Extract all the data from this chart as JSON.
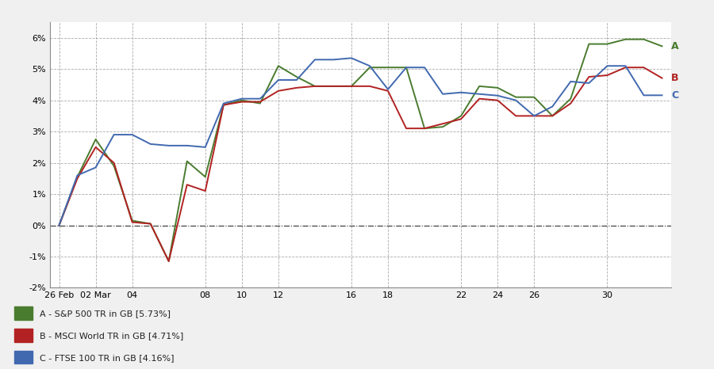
{
  "series": {
    "A": {
      "label": "A - S&P 500 TR in GB [5.73%]",
      "color": "#4a7c2f",
      "x": [
        0,
        1,
        2,
        3,
        4,
        5,
        6,
        7,
        8,
        9,
        10,
        11,
        12,
        13,
        14,
        15,
        16,
        17,
        18,
        19,
        20,
        21,
        22,
        23,
        24,
        25,
        26,
        27,
        28,
        29,
        30,
        31,
        32,
        33
      ],
      "y": [
        0.0,
        1.55,
        2.75,
        1.9,
        0.15,
        0.05,
        -1.15,
        2.05,
        1.55,
        3.85,
        4.0,
        3.9,
        5.1,
        4.75,
        4.45,
        4.45,
        4.45,
        5.05,
        5.05,
        5.05,
        3.1,
        3.15,
        3.5,
        4.45,
        4.4,
        4.1,
        4.1,
        3.5,
        4.05,
        5.8,
        5.8,
        5.95,
        5.95,
        5.73
      ]
    },
    "B": {
      "label": "B - MSCI World TR in GB [4.71%]",
      "color": "#b22222",
      "x": [
        0,
        1,
        2,
        3,
        4,
        5,
        6,
        7,
        8,
        9,
        10,
        11,
        12,
        13,
        14,
        15,
        16,
        17,
        18,
        19,
        20,
        21,
        22,
        23,
        24,
        25,
        26,
        27,
        28,
        29,
        30,
        31,
        32,
        33
      ],
      "y": [
        0.0,
        1.5,
        2.5,
        2.0,
        0.1,
        0.05,
        -1.15,
        1.3,
        1.1,
        3.85,
        3.95,
        3.95,
        4.3,
        4.4,
        4.45,
        4.45,
        4.45,
        4.45,
        4.3,
        3.1,
        3.1,
        3.25,
        3.4,
        4.05,
        4.0,
        3.5,
        3.5,
        3.5,
        3.9,
        4.75,
        4.8,
        5.05,
        5.05,
        4.71
      ]
    },
    "C": {
      "label": "C - FTSE 100 TR in GB [4.16%]",
      "color": "#4169b0",
      "x": [
        0,
        1,
        2,
        3,
        4,
        5,
        6,
        7,
        8,
        9,
        10,
        11,
        12,
        13,
        14,
        15,
        16,
        17,
        18,
        19,
        20,
        21,
        22,
        23,
        24,
        25,
        26,
        27,
        28,
        29,
        30,
        31,
        32,
        33
      ],
      "y": [
        0.0,
        1.6,
        1.85,
        2.9,
        2.9,
        2.6,
        2.55,
        2.55,
        2.5,
        3.9,
        4.05,
        4.05,
        4.65,
        4.65,
        5.3,
        5.3,
        5.35,
        5.1,
        4.35,
        5.05,
        5.05,
        4.2,
        4.25,
        4.2,
        4.15,
        4.0,
        3.5,
        3.8,
        4.6,
        4.55,
        5.1,
        5.1,
        4.16,
        4.16
      ]
    }
  },
  "xtick_positions": [
    0,
    2,
    4,
    8,
    10,
    12,
    16,
    18,
    22,
    24,
    26,
    30
  ],
  "xtick_labels": [
    "26 Feb",
    "02 Mar",
    "04",
    "08",
    "10",
    "12",
    "16",
    "18",
    "22",
    "24",
    "26",
    "30"
  ],
  "ytick_positions": [
    -2,
    -1,
    0,
    1,
    2,
    3,
    4,
    5,
    6
  ],
  "ytick_labels": [
    "-2%",
    "-1%",
    "0%",
    "1%",
    "2%",
    "3%",
    "4%",
    "5%",
    "6%"
  ],
  "ylim": [
    -2.0,
    6.5
  ],
  "xlim": [
    -0.5,
    33.5
  ],
  "background_color": "#f0f0f0",
  "plot_bg_color": "#ffffff",
  "legend_bg_color": "#e8e8e8",
  "grid_color": "#aaaaaa",
  "zero_line_color": "#333333",
  "end_labels": {
    "A": 5.73,
    "B": 4.71,
    "C": 4.16
  },
  "end_x": 33
}
